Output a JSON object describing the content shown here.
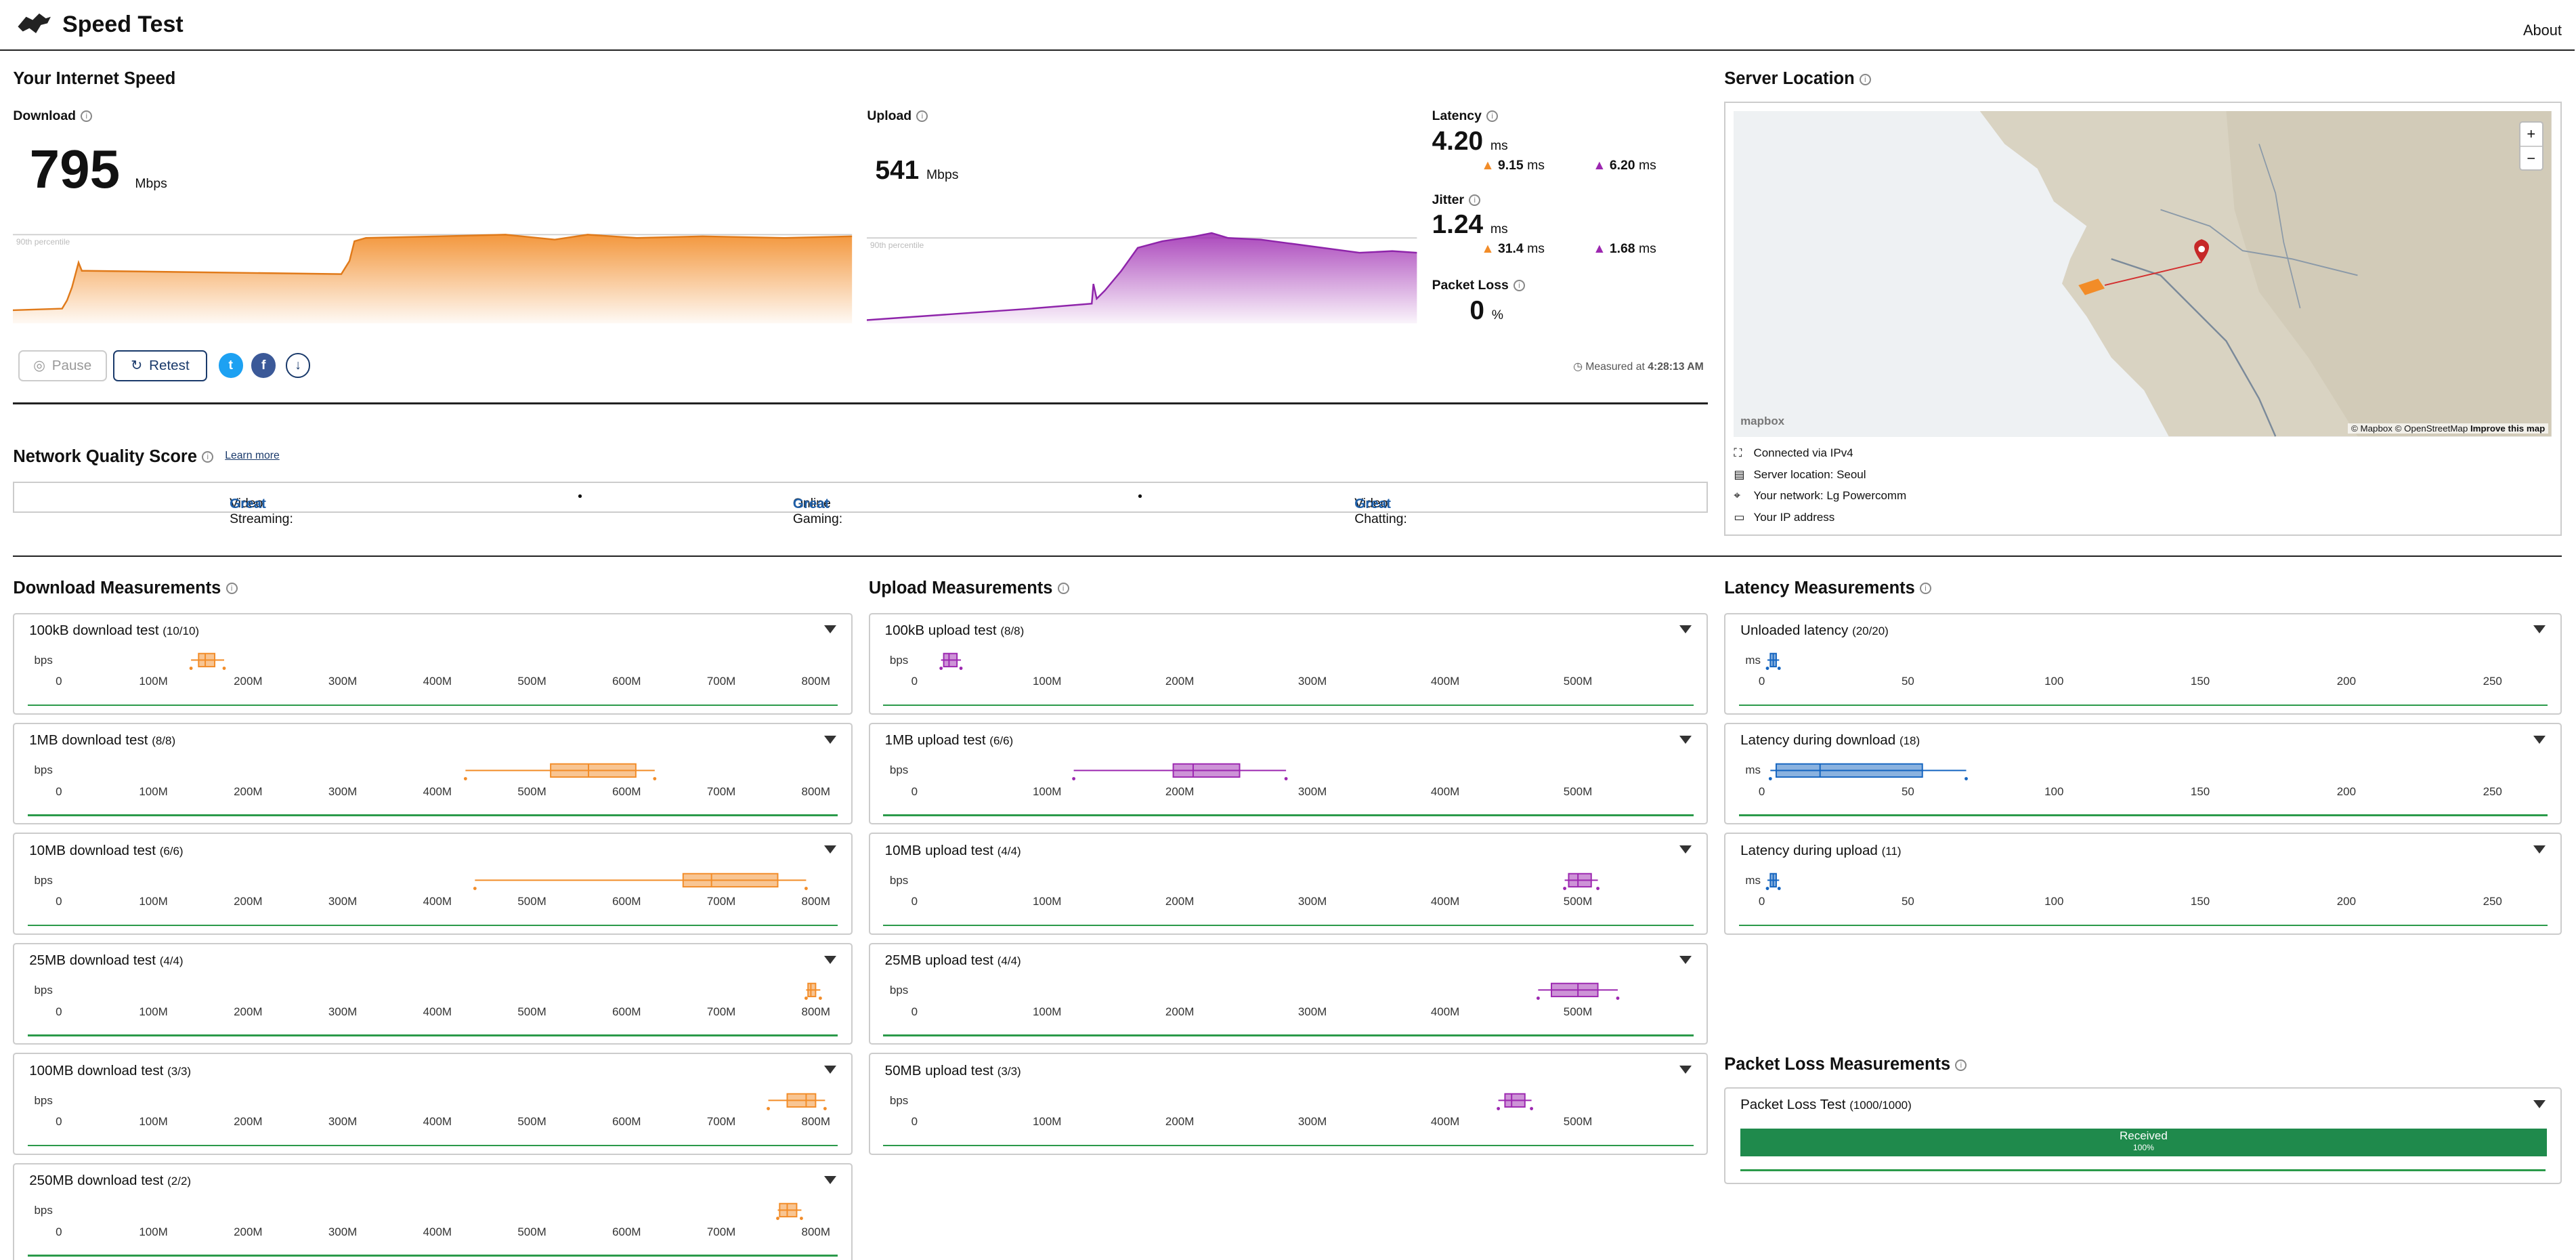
{
  "app": {
    "title": "Speed Test",
    "about": "About"
  },
  "speed": {
    "heading": "Your Internet Speed",
    "download_label": "Download",
    "download_value": "795",
    "download_unit": "Mbps",
    "upload_label": "Upload",
    "upload_value": "541",
    "upload_unit": "Mbps",
    "percentile_label": "90th percentile",
    "latency_label": "Latency",
    "latency_value": "4.20",
    "latency_unit": "ms",
    "latency_down": "9.15",
    "latency_up": "6.20",
    "jitter_label": "Jitter",
    "jitter_value": "1.24",
    "jitter_unit": "ms",
    "jitter_down": "31.4",
    "jitter_up": "1.68",
    "ms": "ms",
    "packet_loss_label": "Packet Loss",
    "packet_loss_value": "0",
    "packet_loss_unit": "%",
    "measured_prefix": "Measured at",
    "measured_time": "4:28:13 AM"
  },
  "buttons": {
    "pause": "Pause",
    "retest": "Retest"
  },
  "social": {
    "twitter": "t",
    "facebook": "f"
  },
  "nqs": {
    "heading": "Network Quality Score",
    "learn_more": "Learn more",
    "items": [
      {
        "label": "Video Streaming:",
        "value": "Great"
      },
      {
        "label": "Online Gaming:",
        "value": "Great"
      },
      {
        "label": "Video Chatting:",
        "value": "Great"
      }
    ],
    "separator": "•"
  },
  "server": {
    "heading": "Server Location",
    "connected": "Connected via IPv4",
    "location": "Server location: Seoul",
    "network": "Your network: Lg Powercomm",
    "ip": "Your IP address",
    "attribution_pre": "© Mapbox © OpenStreetMap",
    "attribution_link": "Improve this map",
    "mapbox_logo": "mapbox",
    "zoom_in": "+",
    "zoom_out": "−"
  },
  "download_measurements": {
    "heading": "Download Measurements",
    "unit": "bps",
    "ticks": [
      "0",
      "100M",
      "200M",
      "300M",
      "400M",
      "500M",
      "600M",
      "700M",
      "800M"
    ],
    "tests": [
      {
        "name": "100kB download test",
        "count": "(10/10)"
      },
      {
        "name": "1MB download test",
        "count": "(8/8)"
      },
      {
        "name": "10MB download test",
        "count": "(6/6)"
      },
      {
        "name": "25MB download test",
        "count": "(4/4)"
      },
      {
        "name": "100MB download test",
        "count": "(3/3)"
      },
      {
        "name": "250MB download test",
        "count": "(2/2)"
      }
    ]
  },
  "upload_measurements": {
    "heading": "Upload Measurements",
    "unit": "bps",
    "ticks": [
      "0",
      "100M",
      "200M",
      "300M",
      "400M",
      "500M"
    ],
    "tests": [
      {
        "name": "100kB upload test",
        "count": "(8/8)"
      },
      {
        "name": "1MB upload test",
        "count": "(6/6)"
      },
      {
        "name": "10MB upload test",
        "count": "(4/4)"
      },
      {
        "name": "25MB upload test",
        "count": "(4/4)"
      },
      {
        "name": "50MB upload test",
        "count": "(3/3)"
      }
    ]
  },
  "latency_measurements": {
    "heading": "Latency Measurements",
    "unit": "ms",
    "ticks": [
      "0",
      "50",
      "100",
      "150",
      "200",
      "250"
    ],
    "tests": [
      {
        "name": "Unloaded latency",
        "count": "(20/20)"
      },
      {
        "name": "Latency during download",
        "count": "(18)"
      },
      {
        "name": "Latency during upload",
        "count": "(11)"
      }
    ]
  },
  "packet_loss": {
    "heading": "Packet Loss Measurements",
    "test_name": "Packet Loss Test",
    "test_count": "(1000/1000)",
    "bar_label": "Received",
    "bar_percent": "100%",
    "received_fraction": 1.0
  },
  "colors": {
    "download": "#f28c28",
    "upload": "#9c27b0",
    "great": "#1f5fa8",
    "received": "#1f8a4c",
    "latency": "#1565c0"
  }
}
